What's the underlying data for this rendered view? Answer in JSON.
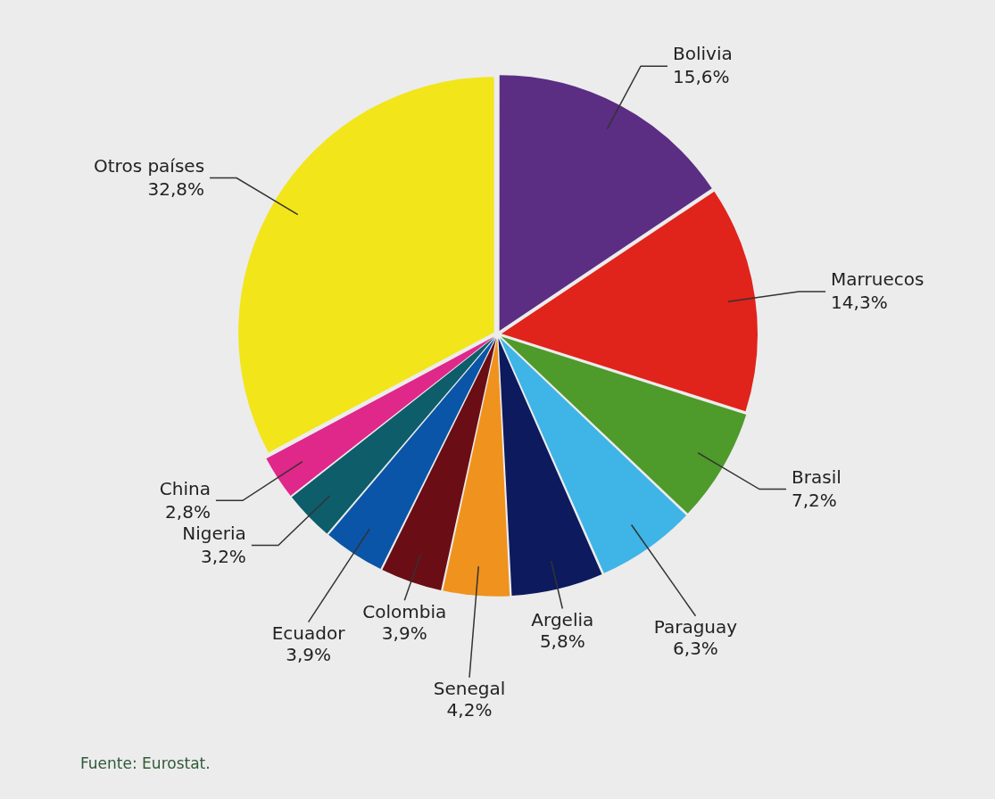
{
  "chart_data": {
    "type": "pie",
    "categories": [
      "Bolivia",
      "Marruecos",
      "Brasil",
      "Paraguay",
      "Argelia",
      "Senegal",
      "Colombia",
      "Ecuador",
      "Nigeria",
      "China",
      "Otros países"
    ],
    "values": [
      15.6,
      14.3,
      7.2,
      6.3,
      5.8,
      4.2,
      3.9,
      3.9,
      3.2,
      2.8,
      32.8
    ],
    "value_labels": [
      "15,6%",
      "14,3%",
      "7,2%",
      "6,3%",
      "5,8%",
      "4,2%",
      "3,9%",
      "3,9%",
      "3,2%",
      "2,8%",
      "32,8%"
    ],
    "colors": [
      "#5b2d83",
      "#e0231b",
      "#4e9a2a",
      "#3fb4e6",
      "#0d1a5e",
      "#f0921e",
      "#6b0d14",
      "#0a55a8",
      "#0d5d6b",
      "#e0278a",
      "#f2e51a"
    ],
    "legend": false,
    "annotations": [
      "Fuente: Eurostat."
    ]
  }
}
